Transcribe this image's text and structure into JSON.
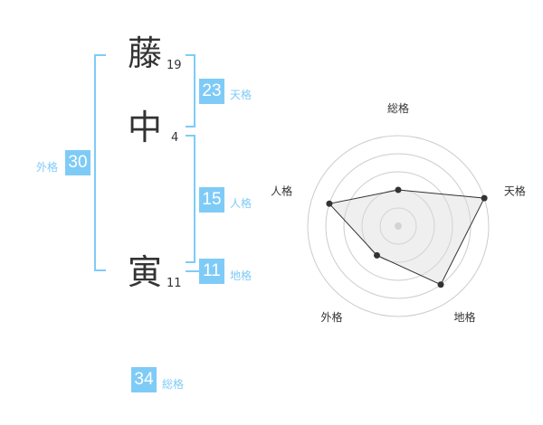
{
  "name": [
    {
      "char": "藤",
      "strokes": "19"
    },
    {
      "char": "中",
      "strokes": "4"
    },
    {
      "char": "寅",
      "strokes": "11"
    }
  ],
  "kaku": {
    "tenkaku": {
      "label": "天格",
      "value": "23"
    },
    "jinkaku": {
      "label": "人格",
      "value": "15"
    },
    "chikaku": {
      "label": "地格",
      "value": "11"
    },
    "gaikaku": {
      "label": "外格",
      "value": "30"
    },
    "soukaku": {
      "label": "総格",
      "value": "34"
    }
  },
  "accent": "#7fcbf7",
  "chart_data": {
    "type": "radar",
    "axes": [
      "総格",
      "天格",
      "地格",
      "外格",
      "人格"
    ],
    "values": [
      2,
      5,
      4,
      2,
      4
    ],
    "range": [
      0,
      5
    ],
    "rings": 5
  }
}
